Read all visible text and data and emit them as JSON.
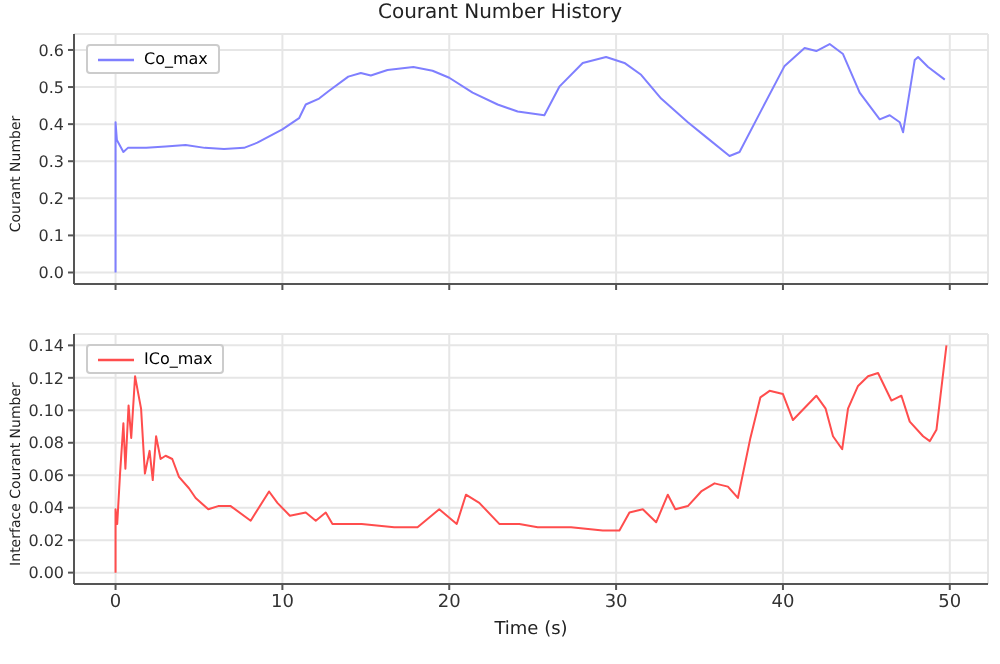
{
  "chart_data": [
    {
      "type": "line",
      "title": "Courant Number History",
      "ylabel": "Courant Number",
      "xlim": [
        -2.49,
        52.29
      ],
      "xticks": [
        0,
        10,
        20,
        30,
        40,
        50
      ],
      "ylim": [
        -0.031,
        0.643
      ],
      "yticks": [
        {
          "value": 0,
          "label": "0.0"
        },
        {
          "value": 0.1,
          "label": "0.1"
        },
        {
          "value": 0.2,
          "label": "0.2"
        },
        {
          "value": 0.3,
          "label": "0.3"
        },
        {
          "value": 0.4,
          "label": "0.4"
        },
        {
          "value": 0.5,
          "label": "0.5"
        },
        {
          "value": 0.6,
          "label": "0.6"
        }
      ],
      "grid": true,
      "legend": "top left",
      "tick_labels": "y",
      "series": [
        {
          "name": "Co_max",
          "color": "#7f7fff",
          "x": [
            0,
            0,
            0.08,
            0.47,
            0.74,
            1.84,
            3.0,
            4.2,
            5.35,
            6.5,
            7.7,
            8.5,
            10.0,
            11,
            11.4,
            12.2,
            12.8,
            13.95,
            14.7,
            15.3,
            16.3,
            17.85,
            19.0,
            20.0,
            21.4,
            22.9,
            24.1,
            25.7,
            26.6,
            28.0,
            29.4,
            30.5,
            31.5,
            32.7,
            34.3,
            35.4,
            36.8,
            37.4,
            38.7,
            40.1,
            41.3,
            42.0,
            42.8,
            43.6,
            44.6,
            45.8,
            46.4,
            47.0,
            47.2,
            47.9,
            48.1,
            48.7,
            49.7
          ],
          "values": [
            0,
            0.405,
            0.357,
            0.325,
            0.336,
            0.336,
            0.34,
            0.344,
            0.336,
            0.333,
            0.336,
            0.35,
            0.386,
            0.416,
            0.453,
            0.469,
            0.49,
            0.528,
            0.538,
            0.531,
            0.546,
            0.554,
            0.544,
            0.525,
            0.485,
            0.453,
            0.434,
            0.424,
            0.501,
            0.565,
            0.581,
            0.565,
            0.533,
            0.469,
            0.405,
            0.365,
            0.314,
            0.325,
            0.437,
            0.557,
            0.605,
            0.597,
            0.616,
            0.589,
            0.485,
            0.413,
            0.424,
            0.405,
            0.378,
            0.573,
            0.581,
            0.554,
            0.52
          ]
        }
      ]
    },
    {
      "type": "line",
      "xlabel": "Time (s)",
      "ylabel": "Interface Courant Number",
      "xlim": [
        -2.49,
        52.29
      ],
      "xticks": [
        0,
        10,
        20,
        30,
        40,
        50
      ],
      "ylim": [
        -0.007,
        0.147
      ],
      "yticks": [
        {
          "value": 0,
          "label": "0.00"
        },
        {
          "value": 0.02,
          "label": "0.02"
        },
        {
          "value": 0.04,
          "label": "0.04"
        },
        {
          "value": 0.06,
          "label": "0.06"
        },
        {
          "value": 0.08,
          "label": "0.08"
        },
        {
          "value": 0.1,
          "label": "0.10"
        },
        {
          "value": 0.12,
          "label": "0.12"
        },
        {
          "value": 0.14,
          "label": "0.14"
        }
      ],
      "grid": true,
      "legend": "top left",
      "series": [
        {
          "name": "ICo_max",
          "color": "#ff4d4d",
          "x": [
            0,
            0,
            0.1,
            0.27,
            0.47,
            0.59,
            0.78,
            0.94,
            1.17,
            1.33,
            1.53,
            1.76,
            2.04,
            2.23,
            2.43,
            2.7,
            3.0,
            3.4,
            3.8,
            4.4,
            4.8,
            5.56,
            6.15,
            6.9,
            8.1,
            9.2,
            9.7,
            10.45,
            11.4,
            12.0,
            12.6,
            13.0,
            14.75,
            16.7,
            18.1,
            19.4,
            20.45,
            21.0,
            21.8,
            23.0,
            24.2,
            25.3,
            27.3,
            29.2,
            30.2,
            30.8,
            31.6,
            32.4,
            33.1,
            33.55,
            34.3,
            35.1,
            35.9,
            36.7,
            37.3,
            38.05,
            38.65,
            39.2,
            40.0,
            40.6,
            42.0,
            42.56,
            43.0,
            43.55,
            43.9,
            44.5,
            45.1,
            45.7,
            46.5,
            47.1,
            47.6,
            48.4,
            48.8,
            49.2,
            49.8
          ],
          "values": [
            0,
            0.039,
            0.03,
            0.061,
            0.092,
            0.064,
            0.103,
            0.083,
            0.121,
            0.112,
            0.101,
            0.061,
            0.075,
            0.057,
            0.084,
            0.07,
            0.072,
            0.07,
            0.059,
            0.052,
            0.046,
            0.039,
            0.041,
            0.041,
            0.032,
            0.05,
            0.043,
            0.035,
            0.037,
            0.032,
            0.037,
            0.03,
            0.03,
            0.028,
            0.028,
            0.039,
            0.03,
            0.048,
            0.043,
            0.03,
            0.03,
            0.028,
            0.028,
            0.026,
            0.026,
            0.037,
            0.039,
            0.031,
            0.048,
            0.039,
            0.041,
            0.05,
            0.055,
            0.053,
            0.046,
            0.083,
            0.108,
            0.112,
            0.11,
            0.094,
            0.109,
            0.101,
            0.084,
            0.076,
            0.101,
            0.115,
            0.121,
            0.123,
            0.106,
            0.109,
            0.093,
            0.084,
            0.081,
            0.088,
            0.14
          ]
        }
      ]
    }
  ]
}
